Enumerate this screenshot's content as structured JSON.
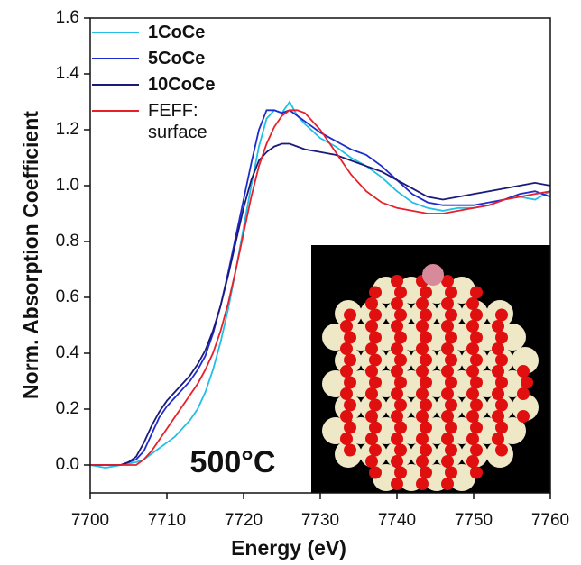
{
  "chart_data": {
    "type": "line",
    "x_label": "Energy (eV)",
    "y_label": "Norm. Absorption Coefficient",
    "annotation": "500°C",
    "x": [
      7700,
      7702,
      7704,
      7705,
      7706,
      7707,
      7708,
      7709,
      7710,
      7711,
      7712,
      7713,
      7714,
      7715,
      7716,
      7717,
      7718,
      7719,
      7720,
      7721,
      7722,
      7723,
      7724,
      7725,
      7726,
      7727,
      7728,
      7730,
      7732,
      7734,
      7736,
      7738,
      7740,
      7742,
      7744,
      7746,
      7748,
      7750,
      7752,
      7754,
      7756,
      7758,
      7760
    ],
    "series": [
      {
        "name": "1CoCe",
        "color": "#22bfe6",
        "bold": true,
        "values": [
          0,
          -0.01,
          0,
          0.005,
          0.01,
          0.02,
          0.04,
          0.06,
          0.08,
          0.1,
          0.13,
          0.16,
          0.2,
          0.26,
          0.34,
          0.44,
          0.56,
          0.7,
          0.85,
          1.0,
          1.14,
          1.24,
          1.27,
          1.26,
          1.3,
          1.25,
          1.22,
          1.17,
          1.14,
          1.1,
          1.07,
          1.03,
          0.98,
          0.94,
          0.92,
          0.91,
          0.92,
          0.92,
          0.93,
          0.95,
          0.96,
          0.95,
          0.98
        ]
      },
      {
        "name": "5CoCe",
        "color": "#1f2ccc",
        "bold": true,
        "values": [
          0,
          0,
          0,
          0.01,
          0.02,
          0.05,
          0.11,
          0.17,
          0.21,
          0.24,
          0.27,
          0.3,
          0.34,
          0.39,
          0.47,
          0.57,
          0.69,
          0.82,
          0.95,
          1.08,
          1.2,
          1.27,
          1.27,
          1.26,
          1.27,
          1.25,
          1.23,
          1.19,
          1.16,
          1.13,
          1.11,
          1.07,
          1.02,
          0.97,
          0.94,
          0.93,
          0.93,
          0.93,
          0.94,
          0.95,
          0.97,
          0.98,
          0.96
        ]
      },
      {
        "name": "10CoCe",
        "color": "#1a1a7a",
        "bold": true,
        "values": [
          0,
          0,
          0,
          0.01,
          0.03,
          0.08,
          0.14,
          0.19,
          0.23,
          0.26,
          0.29,
          0.32,
          0.36,
          0.41,
          0.48,
          0.57,
          0.68,
          0.8,
          0.92,
          1.02,
          1.09,
          1.12,
          1.14,
          1.15,
          1.15,
          1.14,
          1.13,
          1.12,
          1.11,
          1.09,
          1.07,
          1.05,
          1.02,
          0.99,
          0.96,
          0.95,
          0.96,
          0.97,
          0.98,
          0.99,
          1.0,
          1.01,
          1.0
        ]
      },
      {
        "name": "FEFF: surface",
        "color": "#e8202a",
        "bold": false,
        "values": [
          0,
          0,
          0,
          0,
          0,
          0.02,
          0.05,
          0.09,
          0.13,
          0.17,
          0.21,
          0.25,
          0.29,
          0.34,
          0.4,
          0.48,
          0.58,
          0.7,
          0.83,
          0.96,
          1.07,
          1.15,
          1.21,
          1.25,
          1.27,
          1.27,
          1.26,
          1.2,
          1.12,
          1.04,
          0.98,
          0.94,
          0.92,
          0.91,
          0.9,
          0.9,
          0.91,
          0.92,
          0.93,
          0.95,
          0.96,
          0.97,
          0.98
        ]
      }
    ],
    "xlim": [
      7700,
      7760
    ],
    "xticks": [
      7700,
      7710,
      7720,
      7730,
      7740,
      7750,
      7760
    ],
    "ylim": [
      -0.1,
      1.6
    ],
    "yticks": [
      {
        "value": 0,
        "label": "0.0"
      },
      0.2,
      0.4,
      0.6,
      0.8,
      {
        "value": 1,
        "label": "1.0"
      },
      1.2,
      1.4,
      1.6
    ]
  }
}
